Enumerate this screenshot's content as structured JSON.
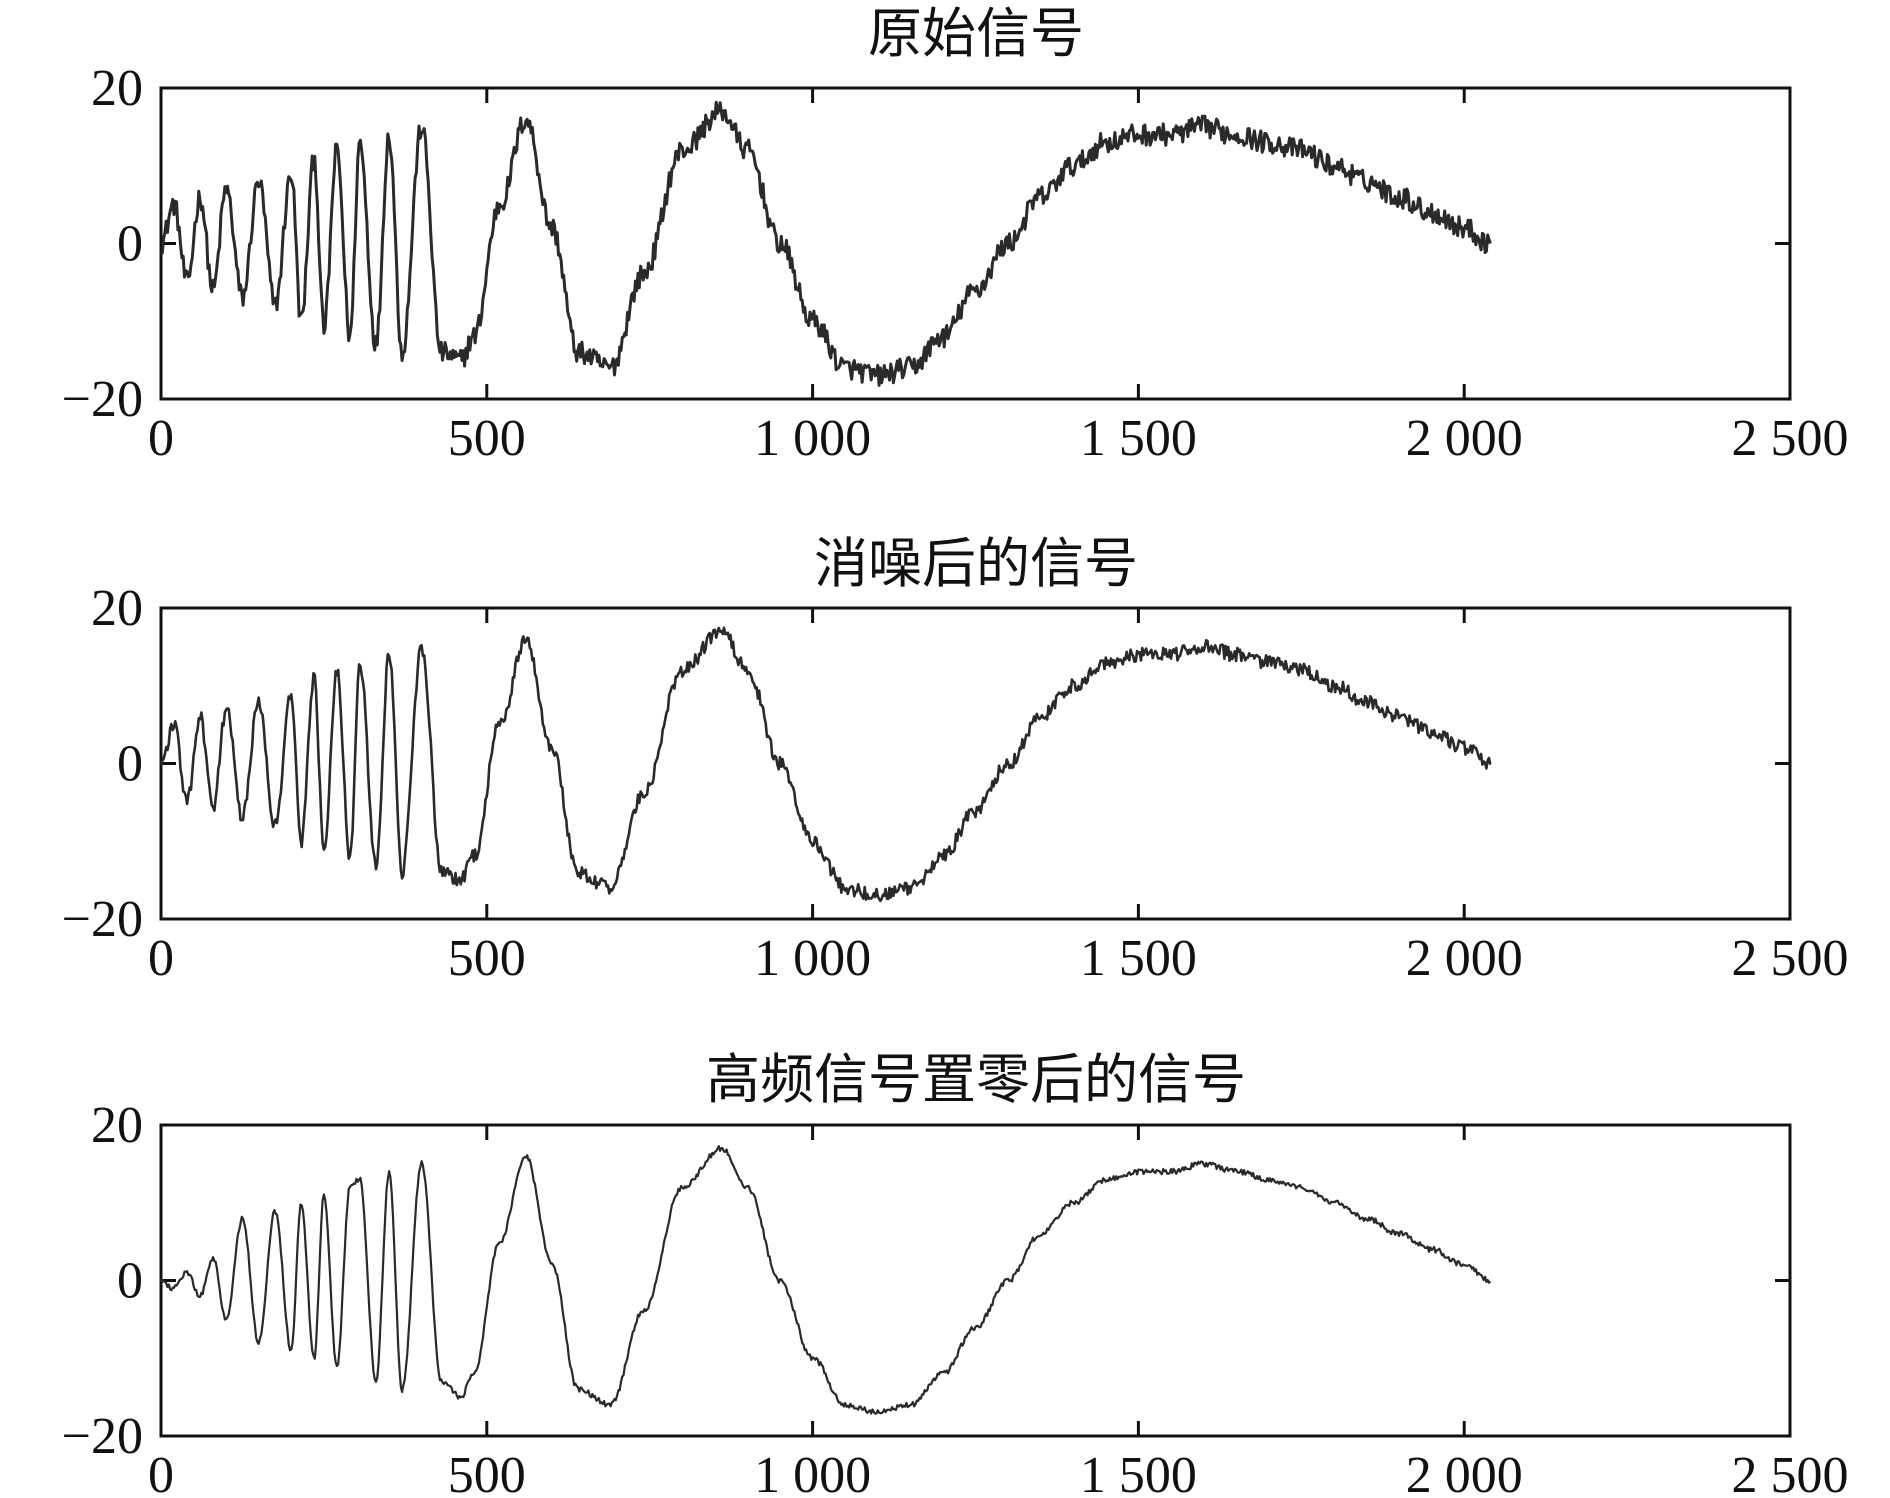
{
  "figure": {
    "line_color": "#2a2a2a"
  },
  "chart_data": [
    {
      "type": "line",
      "title": "原始信号",
      "xlim": [
        0,
        2500
      ],
      "ylim": [
        -20,
        20
      ],
      "xticks": [
        0,
        500,
        1000,
        1500,
        2000,
        2500
      ],
      "xtick_labels": [
        "0",
        "500",
        "1 000",
        "1 500",
        "2 000",
        "2 500"
      ],
      "yticks": [
        -20,
        0,
        20
      ],
      "ytick_labels": [
        "−20",
        "0",
        "20"
      ],
      "grid": false,
      "series": [
        {
          "noise": "high",
          "x": [
            0,
            20,
            40,
            60,
            80,
            100,
            125,
            150,
            175,
            200,
            215,
            235,
            250,
            270,
            290,
            305,
            330,
            350,
            370,
            400,
            430,
            460,
            480,
            520,
            560,
            600,
            640,
            690,
            740,
            800,
            860,
            900,
            950,
            1000,
            1050,
            1100,
            1150,
            1200,
            1250,
            1300,
            1350,
            1400,
            1450,
            1500,
            1550,
            1600,
            1650,
            1700,
            1750,
            1800,
            1850,
            1900,
            1950,
            2000,
            2040
          ],
          "y": [
            0,
            5,
            -5,
            6,
            -6,
            7,
            -7,
            8,
            -8,
            9,
            -10,
            11,
            -11,
            12,
            -12,
            13,
            -13,
            14,
            -14,
            15,
            -14,
            -15,
            -12,
            5,
            16,
            2,
            -14,
            -16,
            -4,
            12,
            17,
            12,
            0,
            -10,
            -16,
            -17,
            -16,
            -12,
            -6,
            0,
            6,
            10,
            13,
            14,
            14,
            15,
            14,
            13,
            12,
            10,
            8,
            6,
            4,
            2,
            0
          ]
        }
      ]
    },
    {
      "type": "line",
      "title": "消噪后的信号",
      "xlim": [
        0,
        2500
      ],
      "ylim": [
        -20,
        20
      ],
      "xticks": [
        0,
        500,
        1000,
        1500,
        2000,
        2500
      ],
      "xtick_labels": [
        "0",
        "500",
        "1 000",
        "1 500",
        "2 000",
        "2 500"
      ],
      "yticks": [
        -20,
        0,
        20
      ],
      "ytick_labels": [
        "−20",
        "0",
        "20"
      ],
      "grid": false,
      "series": [
        {
          "noise": "medium",
          "x": [
            0,
            20,
            40,
            60,
            80,
            100,
            125,
            150,
            175,
            200,
            215,
            235,
            250,
            270,
            290,
            305,
            330,
            350,
            370,
            400,
            430,
            460,
            480,
            520,
            560,
            600,
            640,
            690,
            740,
            800,
            860,
            900,
            950,
            1000,
            1050,
            1100,
            1150,
            1200,
            1250,
            1300,
            1350,
            1400,
            1450,
            1500,
            1550,
            1600,
            1650,
            1700,
            1750,
            1800,
            1850,
            1900,
            1950,
            2000,
            2040
          ],
          "y": [
            0,
            5,
            -5,
            6,
            -6,
            7,
            -7,
            8,
            -8,
            9,
            -10,
            11,
            -11,
            12,
            -12,
            13,
            -13,
            14,
            -14,
            15,
            -14,
            -15,
            -12,
            5,
            16,
            2,
            -14,
            -16,
            -4,
            12,
            17,
            12,
            0,
            -10,
            -16,
            -17,
            -16,
            -12,
            -6,
            0,
            6,
            10,
            13,
            14,
            14,
            15,
            14,
            13,
            12,
            10,
            8,
            6,
            4,
            2,
            0
          ]
        }
      ]
    },
    {
      "type": "line",
      "title": "高频信号置零后的信号",
      "xlim": [
        0,
        2500
      ],
      "ylim": [
        -20,
        20
      ],
      "xticks": [
        0,
        500,
        1000,
        1500,
        2000,
        2500
      ],
      "xtick_labels": [
        "0",
        "500",
        "1 000",
        "1 500",
        "2 000",
        "2 500"
      ],
      "yticks": [
        -20,
        0,
        20
      ],
      "ytick_labels": [
        "−20",
        "0",
        "20"
      ],
      "grid": false,
      "series": [
        {
          "noise": "low",
          "x": [
            0,
            20,
            40,
            60,
            80,
            100,
            125,
            150,
            175,
            200,
            215,
            235,
            250,
            270,
            290,
            305,
            330,
            350,
            370,
            400,
            430,
            460,
            480,
            520,
            560,
            600,
            640,
            690,
            740,
            800,
            860,
            900,
            950,
            1000,
            1050,
            1100,
            1150,
            1200,
            1250,
            1300,
            1350,
            1400,
            1450,
            1500,
            1550,
            1600,
            1650,
            1700,
            1750,
            1800,
            1850,
            1900,
            1950,
            2000,
            2040
          ],
          "y": [
            0,
            -1,
            1,
            -2,
            3,
            -5,
            8,
            -8,
            9,
            -9,
            10,
            -10,
            11,
            -11,
            12,
            13,
            -13,
            14,
            -14,
            15,
            -13,
            -15,
            -12,
            5,
            16,
            2,
            -14,
            -16,
            -4,
            12,
            17,
            12,
            0,
            -10,
            -16,
            -17,
            -16,
            -12,
            -6,
            0,
            6,
            10,
            13,
            14,
            14,
            15,
            14,
            13,
            12,
            10,
            8,
            6,
            4,
            2,
            0
          ]
        }
      ]
    }
  ]
}
